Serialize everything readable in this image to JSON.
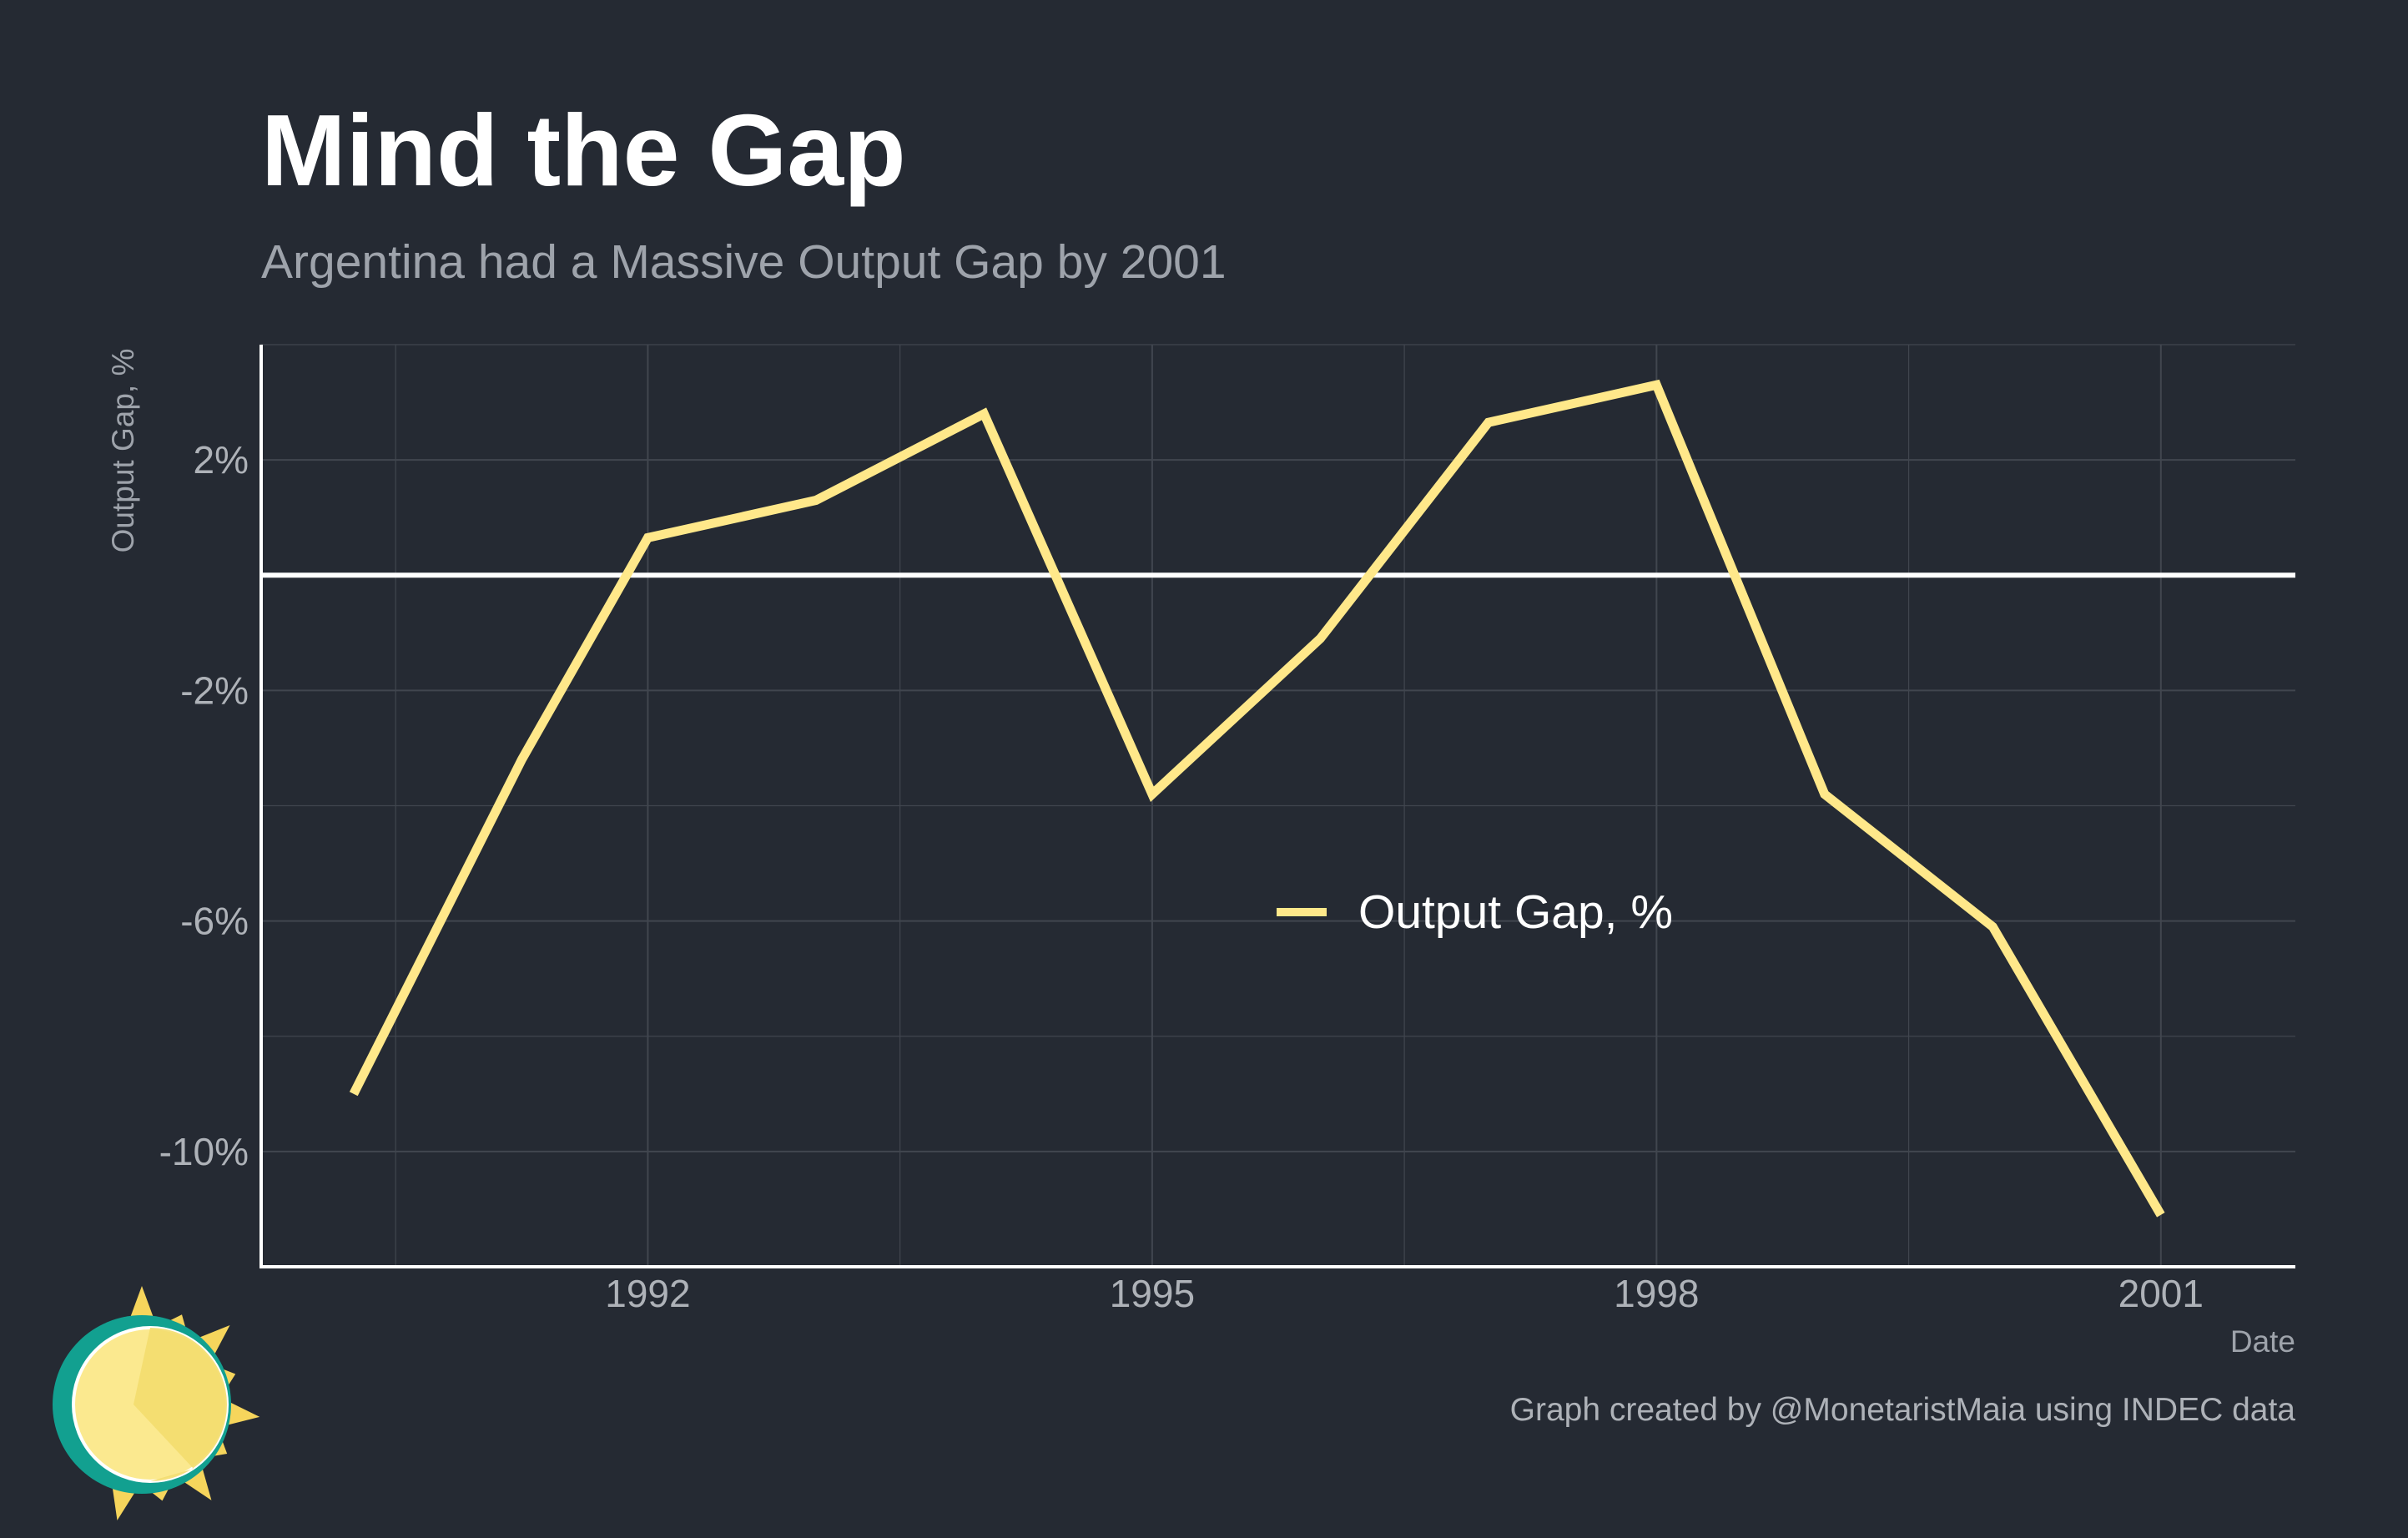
{
  "chart_data": {
    "type": "line",
    "title": "Mind the Gap",
    "subtitle": "Argentina had a Massive Output Gap by 2001",
    "xlabel": "Date",
    "ylabel": "Output Gap, %",
    "caption": "Graph created by @MonetaristMaia using INDEC data",
    "x_ticks": [
      1992,
      1995,
      1998,
      2001
    ],
    "y_ticks": [
      2,
      -2,
      -6,
      -10
    ],
    "y_tick_labels": [
      "2%",
      "-2%",
      "-6%",
      "-10%"
    ],
    "xlim": [
      1989.7,
      2001.8
    ],
    "ylim": [
      -12,
      4
    ],
    "reference_line_y": 0,
    "grid": true,
    "legend_position": "center",
    "series": [
      {
        "name": "Output Gap, %",
        "color": "#ffe88a",
        "x": [
          1990.25,
          1991.25,
          1992,
          1993,
          1994,
          1995,
          1996,
          1997,
          1998,
          1999,
          2000,
          2001
        ],
        "y": [
          -9.0,
          -3.2,
          0.65,
          1.3,
          2.8,
          -3.8,
          -1.1,
          2.65,
          3.3,
          -3.8,
          -6.1,
          -11.1
        ]
      }
    ]
  },
  "colors": {
    "background": "#252a33",
    "line": "#ffe88a",
    "grid": "#41464f",
    "zero_line": "#ffffff",
    "text": "#aeb2b8"
  },
  "logo": {
    "icon": "sun-logo-icon"
  }
}
